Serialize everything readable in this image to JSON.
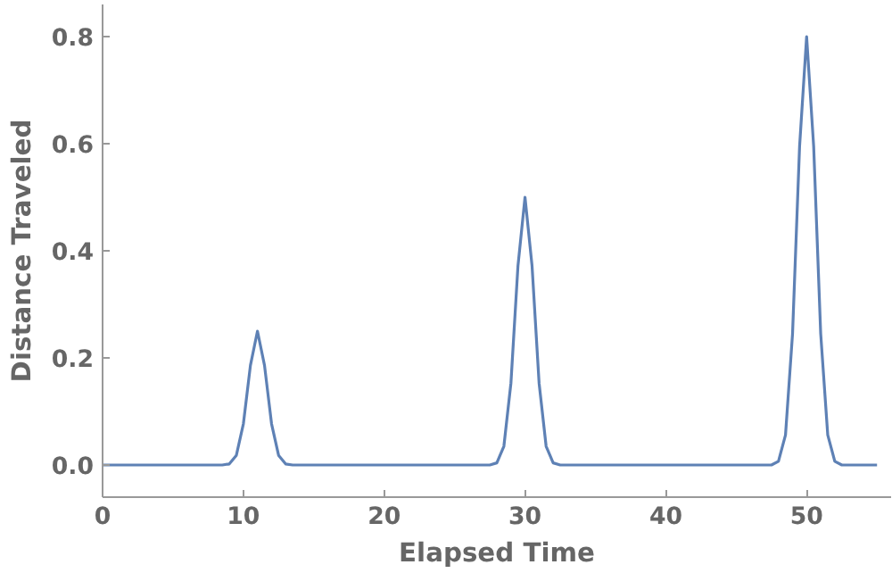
{
  "chart_data": {
    "type": "line",
    "xlabel": "Elapsed Time",
    "ylabel": "Distance Traveled",
    "x": [
      0,
      8.5,
      9,
      9.5,
      10,
      10.5,
      11,
      11.5,
      12,
      12.5,
      13,
      13.5,
      27.5,
      28,
      28.5,
      29,
      29.5,
      30,
      30.5,
      31,
      31.5,
      32,
      32.5,
      47.5,
      48,
      48.5,
      49,
      49.5,
      50,
      50.5,
      51,
      51.5,
      52,
      52.5,
      55
    ],
    "series": [
      {
        "color": "#5e81b5",
        "values": [
          0,
          0,
          0.002,
          0.018,
          0.077,
          0.186,
          0.25,
          0.186,
          0.077,
          0.018,
          0.002,
          0,
          0,
          0.004,
          0.035,
          0.153,
          0.372,
          0.5,
          0.372,
          0.153,
          0.035,
          0.004,
          0,
          0,
          0.007,
          0.056,
          0.245,
          0.595,
          0.8,
          0.595,
          0.245,
          0.056,
          0.007,
          0,
          0
        ]
      }
    ],
    "xlim": [
      0,
      56
    ],
    "ylim": [
      -0.06,
      0.86
    ],
    "xticks": [
      0,
      10,
      20,
      30,
      40,
      50
    ],
    "yticks": [
      {
        "value": 0,
        "label": "0.0"
      },
      {
        "value": 0.2,
        "label": "0.2"
      },
      {
        "value": 0.4,
        "label": "0.4"
      },
      {
        "value": 0.6,
        "label": "0.6"
      },
      {
        "value": 0.8,
        "label": "0.8"
      }
    ],
    "marker": "none",
    "line_style": "solid"
  }
}
